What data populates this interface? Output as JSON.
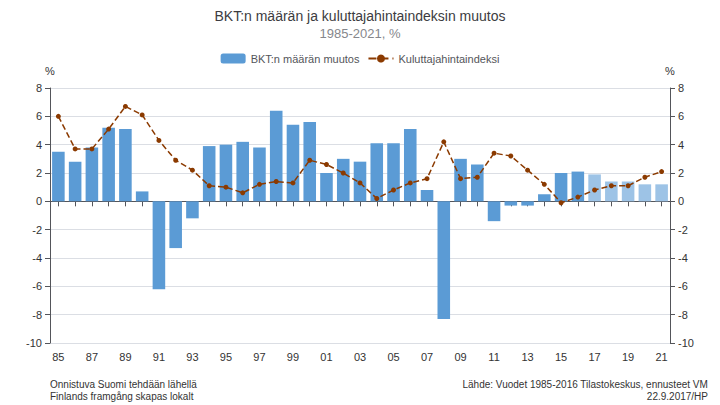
{
  "chart_data": {
    "type": "bar",
    "title": "BKT:n määrän ja kuluttajahintaindeksin muutos",
    "subtitle": "1985-2021, %",
    "ylabel": "%",
    "y2label": "%",
    "categories": [
      "85",
      null,
      "87",
      null,
      "89",
      null,
      "91",
      null,
      "93",
      null,
      "95",
      null,
      "97",
      null,
      "99",
      null,
      "01",
      null,
      "03",
      null,
      "05",
      null,
      "07",
      null,
      "09",
      null,
      "11",
      null,
      "13",
      null,
      "15",
      null,
      "17",
      null,
      "19",
      null,
      "21"
    ],
    "series": [
      {
        "name": "BKT:n määrän muutos",
        "type": "bar",
        "color": "#5B9BD5",
        "colors": [
          "#5B9BD5",
          "#5B9BD5",
          "#5B9BD5",
          "#5B9BD5",
          "#5B9BD5",
          "#5B9BD5",
          "#5B9BD5",
          "#5B9BD5",
          "#5B9BD5",
          "#5B9BD5",
          "#5B9BD5",
          "#5B9BD5",
          "#5B9BD5",
          "#5B9BD5",
          "#5B9BD5",
          "#5B9BD5",
          "#5B9BD5",
          "#5B9BD5",
          "#5B9BD5",
          "#5B9BD5",
          "#5B9BD5",
          "#5B9BD5",
          "#5B9BD5",
          "#5B9BD5",
          "#5B9BD5",
          "#5B9BD5",
          "#5B9BD5",
          "#5B9BD5",
          "#5B9BD5",
          "#5B9BD5",
          "#5B9BD5",
          "#5B9BD5",
          "#9DC3E6",
          "#9DC3E6",
          "#9DC3E6",
          "#9DC3E6",
          "#9DC3E6"
        ],
        "values": [
          3.5,
          2.8,
          3.8,
          5.2,
          5.1,
          0.7,
          -6.2,
          -3.3,
          -1.2,
          3.9,
          4.0,
          4.2,
          3.8,
          6.4,
          5.4,
          5.6,
          2.0,
          3.0,
          2.8,
          4.1,
          4.1,
          5.1,
          0.8,
          -8.3,
          3.0,
          2.6,
          -1.4,
          -0.3,
          -0.3,
          0.5,
          2.0,
          2.1,
          1.9,
          1.4,
          1.4,
          1.2,
          1.2
        ]
      },
      {
        "name": "Kuluttajahintaindeksi",
        "type": "line",
        "axis": "y2",
        "color": "#8B3A00",
        "marker": "circle",
        "line_style": "dashed",
        "values": [
          6.0,
          3.7,
          3.7,
          5.1,
          6.7,
          6.1,
          4.3,
          2.9,
          2.2,
          1.1,
          1.0,
          0.6,
          1.2,
          1.4,
          1.3,
          2.9,
          2.6,
          2.0,
          1.3,
          0.2,
          0.8,
          1.3,
          1.6,
          4.2,
          1.6,
          1.7,
          3.4,
          3.2,
          2.2,
          1.2,
          -0.1,
          0.3,
          0.8,
          1.1,
          1.1,
          1.7,
          2.1
        ]
      }
    ],
    "ylim": [
      -10,
      8
    ],
    "yticks": [
      -10,
      -8,
      -6,
      -4,
      -2,
      0,
      2,
      4,
      6,
      8
    ],
    "y2lim": [
      -10,
      8
    ],
    "y2ticks": [
      -10,
      -8,
      -6,
      -4,
      -2,
      0,
      2,
      4,
      6,
      8
    ],
    "grid": true,
    "legend": "top",
    "annotations": [
      "Onnistuva Suomi tehdään lähellä",
      "Finlands framgång skapas lokalt",
      "Lähde: Vuodet 1985-2016 Tilastokeskus, ennusteet VM",
      "22.9.2017/HP"
    ]
  }
}
